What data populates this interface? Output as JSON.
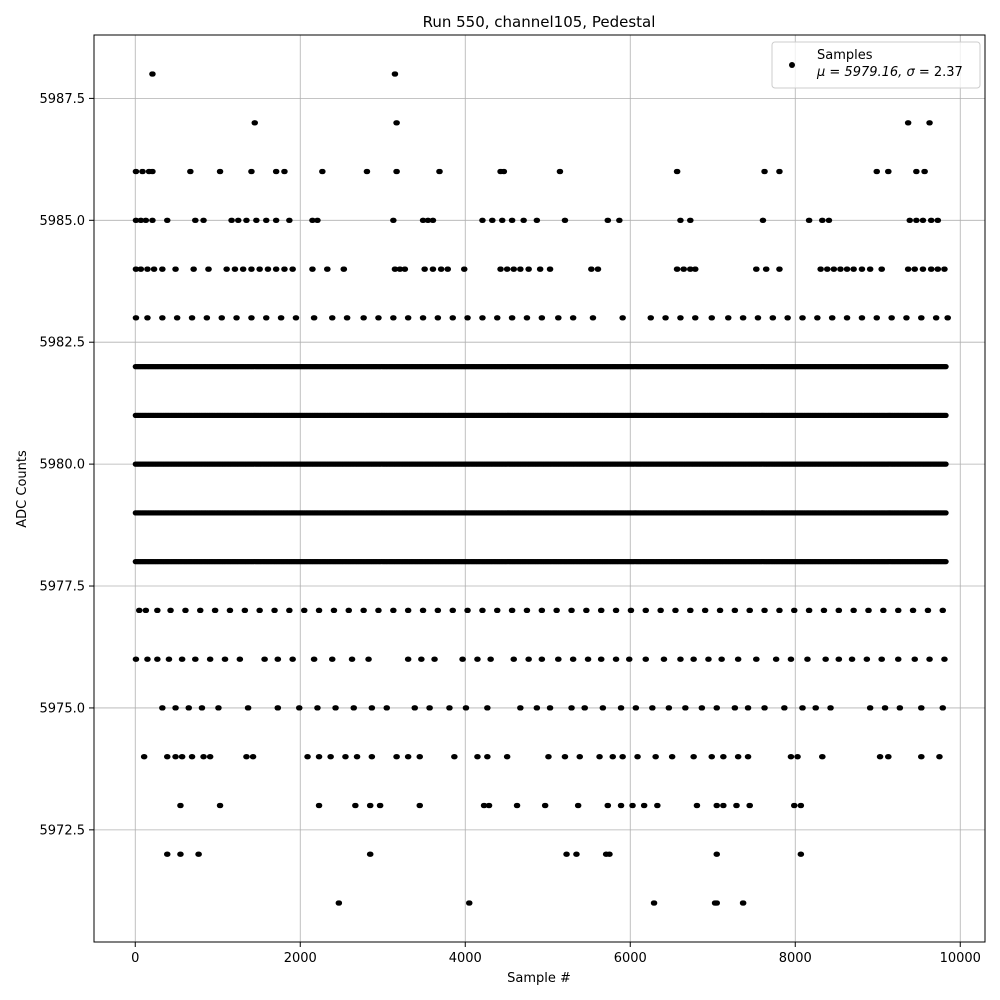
{
  "chart_data": {
    "type": "scatter",
    "title": "Run 550, channel105, Pedestal",
    "xlabel": "Sample #",
    "ylabel": "ADC Counts",
    "xlim": [
      -500,
      10300
    ],
    "ylim": [
      5970.2,
      5988.8
    ],
    "xticks": [
      0,
      2000,
      4000,
      6000,
      8000,
      10000
    ],
    "yticks": [
      5972.5,
      5975.0,
      5977.5,
      5980.0,
      5982.5,
      5985.0,
      5987.5
    ],
    "xtick_labels": [
      "0",
      "2000",
      "4000",
      "6000",
      "8000",
      "10000"
    ],
    "ytick_labels": [
      "5972.5",
      "5975.0",
      "5977.5",
      "5980.0",
      "5982.5",
      "5985.0",
      "5987.5"
    ],
    "grid": true,
    "marker_color": "#000000",
    "legend": {
      "placement": "upper right",
      "series_name": "Samples",
      "stats_prefix": "μ = 5979.16, ",
      "stats_sigma_symbol": "σ",
      "stats_suffix": " = 2.37"
    },
    "stats": {
      "mean": 5979.16,
      "std": 2.37
    },
    "sample_count": 9800,
    "series": [
      {
        "name": "Samples",
        "levels": [
          {
            "y": 5976,
            "x": [
              0,
              140,
              260,
              400,
              560,
              720,
              900,
              1080,
              1260,
              1560,
              1720,
              1900,
              2160,
              2380,
              2620,
              2820,
              3300,
              3460,
              3620,
              3960,
              4140,
              4300,
              4580,
              4760,
              4920,
              5120,
              5300,
              5480,
              5640,
              5820,
              5980,
              6180,
              6400,
              6600,
              6760,
              6940,
              7100,
              7300,
              7520,
              7760,
              7940,
              8140,
              8360,
              8520,
              8680,
              8860,
              9040,
              9240,
              9440,
              9620,
              9800
            ]
          },
          {
            "y": 5975,
            "x": [
              320,
              480,
              640,
              800,
              1000,
              1360,
              1720,
              1980,
              2200,
              2420,
              2640,
              2860,
              3040,
              3380,
              3560,
              3800,
              4000,
              4260,
              4660,
              4860,
              5020,
              5280,
              5440,
              5660,
              5880,
              6060,
              6260,
              6460,
              6660,
              6860,
              7040,
              7260,
              7420,
              7620,
              7860,
              8080,
              8240,
              8420,
              8900,
              9080,
              9260,
              9520,
              9780
            ]
          },
          {
            "y": 5974,
            "x": [
              100,
              380,
              480,
              560,
              680,
              820,
              900,
              1340,
              1420,
              2080,
              2220,
              2360,
              2540,
              2680,
              2860,
              3160,
              3300,
              3440,
              3860,
              4140,
              4260,
              4500,
              5000,
              5200,
              5380,
              5620,
              5780,
              5900,
              6080,
              6300,
              6500,
              6760,
              6980,
              7120,
              7300,
              7420,
              7940,
              8020,
              8320,
              9020,
              9120,
              9520,
              9740
            ]
          },
          {
            "y": 5973,
            "x": [
              540,
              1020,
              2220,
              2660,
              2840,
              2960,
              3440,
              4220,
              4280,
              4620,
              4960,
              5360,
              5720,
              5880,
              6020,
              6160,
              6320,
              6800,
              7040,
              7120,
              7280,
              7440,
              7980,
              8060
            ]
          },
          {
            "y": 5972,
            "x": [
              380,
              540,
              760,
              2840,
              5220,
              5340,
              5700,
              5740,
              7040,
              8060
            ]
          },
          {
            "y": 5971,
            "x": [
              2460,
              4040,
              6280,
              7020,
              7040,
              7360
            ]
          },
          {
            "y": 5977,
            "x": [
              40,
              120,
              260,
              420,
              600,
              780,
              960,
              1140,
              1320,
              1500,
              1680,
              1860,
              2040,
              2220,
              2400,
              2580,
              2760,
              2940,
              3120,
              3300,
              3480,
              3660,
              3840,
              4020,
              4200,
              4380,
              4560,
              4740,
              4920,
              5100,
              5280,
              5460,
              5640,
              5820,
              6000,
              6180,
              6360,
              6540,
              6720,
              6900,
              7080,
              7260,
              7440,
              7620,
              7800,
              7980,
              8160,
              8340,
              8520,
              8700,
              8880,
              9060,
              9240,
              9420,
              9600,
              9780
            ]
          },
          {
            "y": 5983,
            "x": [
              0,
              140,
              320,
              500,
              680,
              860,
              1040,
              1220,
              1400,
              1580,
              1760,
              1940,
              2160,
              2380,
              2560,
              2760,
              2940,
              3120,
              3300,
              3480,
              3660,
              3840,
              4020,
              4200,
              4380,
              4560,
              4740,
              4920,
              5120,
              5300,
              5540,
              5900,
              6240,
              6420,
              6600,
              6780,
              6980,
              7180,
              7360,
              7540,
              7720,
              7900,
              8080,
              8260,
              8440,
              8620,
              8800,
              8980,
              9160,
              9340,
              9520,
              9700,
              9840
            ]
          },
          {
            "y": 5984,
            "x": [
              0,
              60,
              140,
              220,
              320,
              480,
              700,
              880,
              1100,
              1200,
              1300,
              1400,
              1500,
              1600,
              1700,
              1800,
              1900,
              2140,
              2320,
              2520,
              3140,
              3200,
              3260,
              3500,
              3600,
              3700,
              3780,
              3980,
              4420,
              4500,
              4580,
              4660,
              4760,
              4900,
              5020,
              5520,
              5600,
              6560,
              6640,
              6720,
              6780,
              7520,
              7640,
              7800,
              8300,
              8380,
              8460,
              8540,
              8620,
              8700,
              8800,
              8900,
              9040,
              9360,
              9440,
              9540,
              9640,
              9720,
              9800
            ]
          },
          {
            "y": 5985,
            "x": [
              0,
              60,
              120,
              200,
              380,
              720,
              820,
              1160,
              1240,
              1340,
              1460,
              1580,
              1700,
              1860,
              2140,
              2200,
              3120,
              3480,
              3540,
              3600,
              4200,
              4320,
              4440,
              4560,
              4700,
              4860,
              5200,
              5720,
              5860,
              6600,
              6720,
              7600,
              8160,
              8320,
              8400,
              9380,
              9460,
              9540,
              9640,
              9720
            ]
          },
          {
            "y": 5986,
            "x": [
              0,
              80,
              160,
              200,
              660,
              1020,
              1400,
              1700,
              1800,
              2260,
              2800,
              3160,
              3680,
              4420,
              4460,
              5140,
              6560,
              7620,
              7800,
              8980,
              9120,
              9460,
              9560
            ]
          },
          {
            "y": 5987,
            "x": [
              1440,
              3160,
              9360,
              9620
            ]
          },
          {
            "y": 5988,
            "x": [
              200,
              3140
            ]
          }
        ],
        "dense_levels": [
          5978,
          5979,
          5980,
          5981,
          5982
        ],
        "dense_x_range": [
          0,
          9840
        ]
      }
    ]
  }
}
